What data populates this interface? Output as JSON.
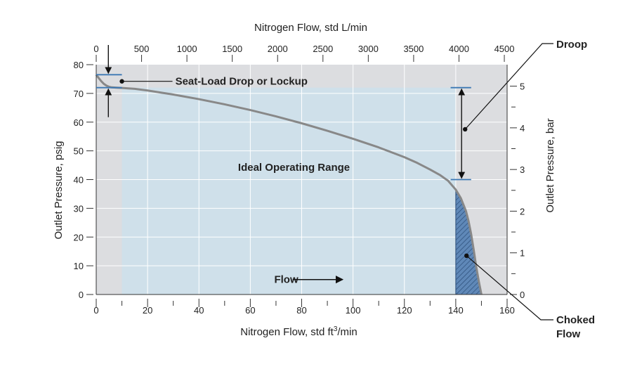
{
  "chart_data": {
    "type": "line",
    "title": "",
    "x_bottom": {
      "label": "Nitrogen Flow, std ft",
      "label_sup": "3",
      "label_suffix": "/min",
      "range": [
        0,
        160
      ],
      "ticks": [
        0,
        20,
        40,
        60,
        80,
        100,
        120,
        140,
        160
      ]
    },
    "x_top": {
      "label": "Nitrogen Flow, std L/min",
      "range": [
        0,
        4530.7
      ],
      "ticks": [
        0,
        500,
        1000,
        1500,
        2000,
        2500,
        3000,
        3500,
        4000,
        4500
      ]
    },
    "y_left": {
      "label": "Outlet Pressure, psig",
      "range": [
        0,
        80
      ],
      "ticks": [
        0,
        10,
        20,
        30,
        40,
        50,
        60,
        70,
        80
      ]
    },
    "y_right": {
      "label": "Outlet Pressure, bar",
      "range": [
        0,
        5.516
      ],
      "ticks": [
        0,
        1,
        2,
        3,
        4,
        5
      ]
    },
    "series": [
      {
        "x": [
          0,
          1,
          2,
          3,
          4,
          5,
          6,
          8,
          10,
          15,
          20,
          30,
          40,
          50,
          60,
          70,
          80,
          90,
          100,
          110,
          120,
          125,
          130,
          134,
          137,
          140,
          142,
          144,
          145,
          146,
          147,
          148,
          149,
          150
        ],
        "y": [
          76.5,
          75.3,
          74.2,
          73.3,
          72.7,
          72.3,
          72.1,
          72.0,
          71.9,
          71.6,
          71.0,
          69.6,
          68.0,
          66.2,
          64.2,
          62.0,
          59.6,
          57.0,
          54.2,
          51.2,
          47.8,
          45.8,
          43.5,
          41.5,
          39.6,
          36.5,
          33.5,
          29.0,
          25.5,
          21.0,
          15.5,
          9.5,
          4.5,
          0
        ]
      }
    ],
    "ideal_range": {
      "x": [
        10,
        140
      ],
      "y": [
        0,
        72
      ]
    },
    "choked_region": {
      "x": [
        140,
        150
      ]
    },
    "lockup_lines": {
      "x": [
        0,
        10
      ],
      "y": [
        76.5,
        72
      ]
    },
    "droop_lines": {
      "x": [
        138,
        146
      ],
      "y": [
        72,
        40
      ]
    },
    "annotations": {
      "seat_load": "Seat-Load Drop or Lockup",
      "ideal": "Ideal Operating Range",
      "flow": "Flow",
      "droop": "Droop",
      "choked_line1": "Choked",
      "choked_line2": "Flow"
    },
    "colors": {
      "outer_bg": "#dcdde0",
      "ideal_fill": "#cfe0ea",
      "curve": "#888888",
      "guide_line": "#3c78b4",
      "choked_fill": "#5f88b8",
      "hatch": "#2b4d78",
      "axis": "#333333"
    }
  }
}
